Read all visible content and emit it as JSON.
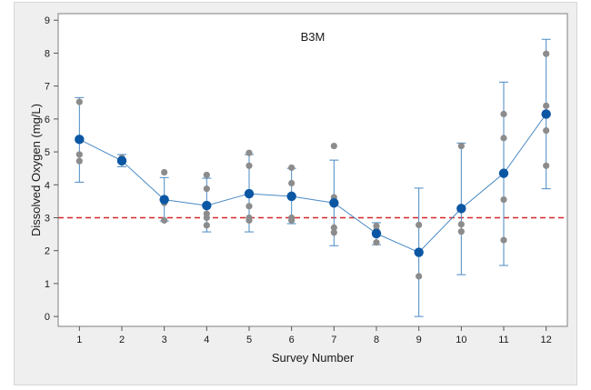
{
  "chart_data": {
    "type": "scatter",
    "title": "B3M",
    "xlabel": "Survey Number",
    "ylabel": "Dissolved Oxygen (mg/L)",
    "xlim": [
      0.5,
      12.5
    ],
    "ylim": [
      -0.3,
      9.2
    ],
    "x_ticks": [
      1,
      2,
      3,
      4,
      5,
      6,
      7,
      8,
      9,
      10,
      11,
      12
    ],
    "y_ticks": [
      0,
      1,
      2,
      3,
      4,
      5,
      6,
      7,
      8,
      9
    ],
    "reference_line": {
      "y": 3,
      "color": "#d62728",
      "style": "dashed"
    },
    "means": [
      5.38,
      4.73,
      3.55,
      3.37,
      3.73,
      3.65,
      3.45,
      2.52,
      1.95,
      3.28,
      4.35,
      6.15
    ],
    "error_bars": [
      [
        4.08,
        6.65
      ],
      [
        4.55,
        4.92
      ],
      [
        2.9,
        4.22
      ],
      [
        2.57,
        4.2
      ],
      [
        2.57,
        4.92
      ],
      [
        2.82,
        4.5
      ],
      [
        2.15,
        4.75
      ],
      [
        2.18,
        2.85
      ],
      [
        0.0,
        3.9
      ],
      [
        1.27,
        5.27
      ],
      [
        1.55,
        7.12
      ],
      [
        3.88,
        8.42
      ]
    ],
    "points": [
      [
        1,
        6.52
      ],
      [
        1,
        4.92
      ],
      [
        1,
        4.72
      ],
      [
        2,
        4.82
      ],
      [
        2,
        4.68
      ],
      [
        3,
        4.38
      ],
      [
        3,
        3.45
      ],
      [
        3,
        2.92
      ],
      [
        4,
        4.3
      ],
      [
        4,
        3.88
      ],
      [
        4,
        3.12
      ],
      [
        4,
        3.0
      ],
      [
        4,
        2.77
      ],
      [
        5,
        4.97
      ],
      [
        5,
        4.58
      ],
      [
        5,
        3.35
      ],
      [
        5,
        3.0
      ],
      [
        5,
        2.92
      ],
      [
        6,
        4.52
      ],
      [
        6,
        4.05
      ],
      [
        6,
        3.7
      ],
      [
        6,
        3.0
      ],
      [
        6,
        2.92
      ],
      [
        7,
        5.18
      ],
      [
        7,
        3.62
      ],
      [
        7,
        3.4
      ],
      [
        7,
        2.7
      ],
      [
        7,
        2.55
      ],
      [
        8,
        2.75
      ],
      [
        8,
        2.62
      ],
      [
        8,
        2.25
      ],
      [
        9,
        2.78
      ],
      [
        9,
        1.22
      ],
      [
        10,
        5.18
      ],
      [
        10,
        2.8
      ],
      [
        10,
        2.58
      ],
      [
        11,
        6.15
      ],
      [
        11,
        5.42
      ],
      [
        11,
        3.55
      ],
      [
        11,
        2.32
      ],
      [
        12,
        7.98
      ],
      [
        12,
        6.4
      ],
      [
        12,
        5.65
      ],
      [
        12,
        4.58
      ]
    ],
    "colors": {
      "mean": "#0b57a4",
      "line": "#4a8ac4",
      "point": "#8c8c8c",
      "errorbar": "#4a8ac4"
    },
    "grid": false,
    "legend": "none"
  }
}
